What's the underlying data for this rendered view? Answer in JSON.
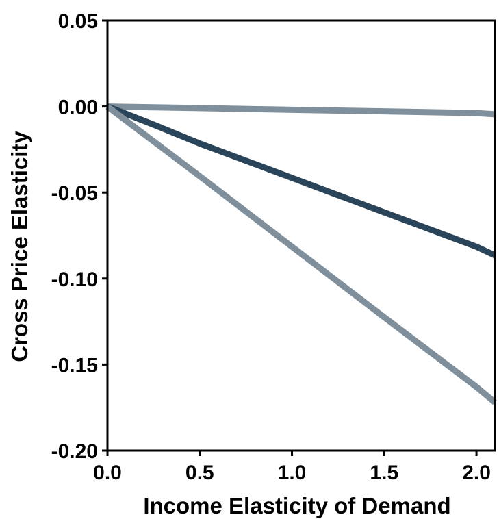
{
  "chart_data": {
    "type": "line",
    "title": "",
    "xlabel": "Income Elasticity of Demand",
    "ylabel": "Cross Price Elasticity",
    "xlim": [
      0.0,
      2.1
    ],
    "ylim": [
      -0.2,
      0.05
    ],
    "x_ticks": [
      0.0,
      0.5,
      1.0,
      1.5,
      2.0
    ],
    "x_tick_labels": [
      "0.0",
      "0.5",
      "1.0",
      "1.5",
      "2.0"
    ],
    "y_ticks": [
      0.05,
      0.0,
      -0.05,
      -0.1,
      -0.15,
      -0.2
    ],
    "y_tick_labels": [
      "0.05",
      "0.00",
      "-0.05",
      "-0.10",
      "-0.15",
      "-0.20"
    ],
    "grid": false,
    "legend": "none",
    "series": [
      {
        "color": "#7f8f9b",
        "x": [
          0.0,
          0.5,
          1.0,
          1.5,
          2.0,
          2.1
        ],
        "y": [
          0.0,
          -0.0009,
          -0.0019,
          -0.0028,
          -0.0038,
          -0.0045
        ]
      },
      {
        "color": "#2a4459",
        "x": [
          0.0,
          0.25,
          0.5,
          0.75,
          1.0,
          1.25,
          1.5,
          1.75,
          2.0,
          2.1
        ],
        "y": [
          0.0,
          -0.0105,
          -0.0215,
          -0.0315,
          -0.0415,
          -0.0515,
          -0.0615,
          -0.0715,
          -0.0815,
          -0.0865
        ]
      },
      {
        "color": "#7f8f9b",
        "x": [
          0.0,
          0.5,
          1.0,
          1.5,
          2.0,
          2.1
        ],
        "y": [
          0.0,
          -0.0405,
          -0.0815,
          -0.1225,
          -0.163,
          -0.172
        ]
      }
    ]
  }
}
